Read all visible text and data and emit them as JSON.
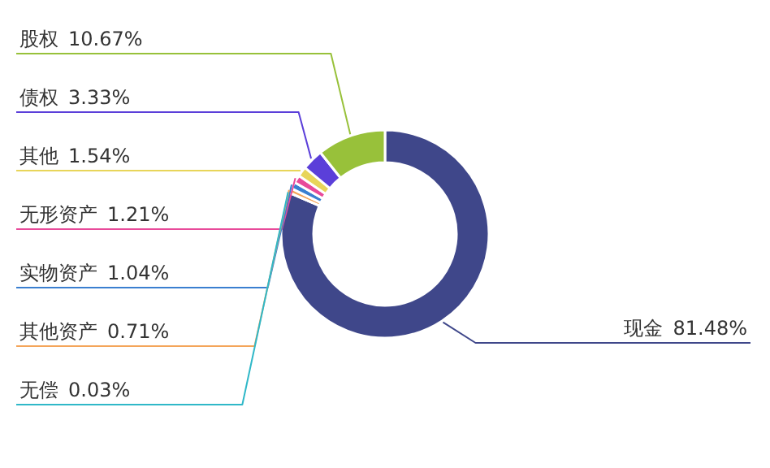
{
  "chart_data": {
    "type": "donut",
    "categories": [
      "现金",
      "无偿",
      "其他资产",
      "实物资产",
      "无形资产",
      "其他",
      "债权",
      "股权"
    ],
    "values": [
      81.48,
      0.03,
      0.71,
      1.04,
      1.21,
      1.54,
      3.33,
      10.67
    ],
    "value_labels": [
      "81.48%",
      "0.03%",
      "0.71%",
      "1.04%",
      "1.21%",
      "1.54%",
      "3.33%",
      "10.67%"
    ],
    "colors": [
      "#3f478a",
      "#30b8c8",
      "#f4a55a",
      "#3a7fd0",
      "#e84a9a",
      "#e8d55a",
      "#5b3fd9",
      "#98c13a"
    ]
  }
}
